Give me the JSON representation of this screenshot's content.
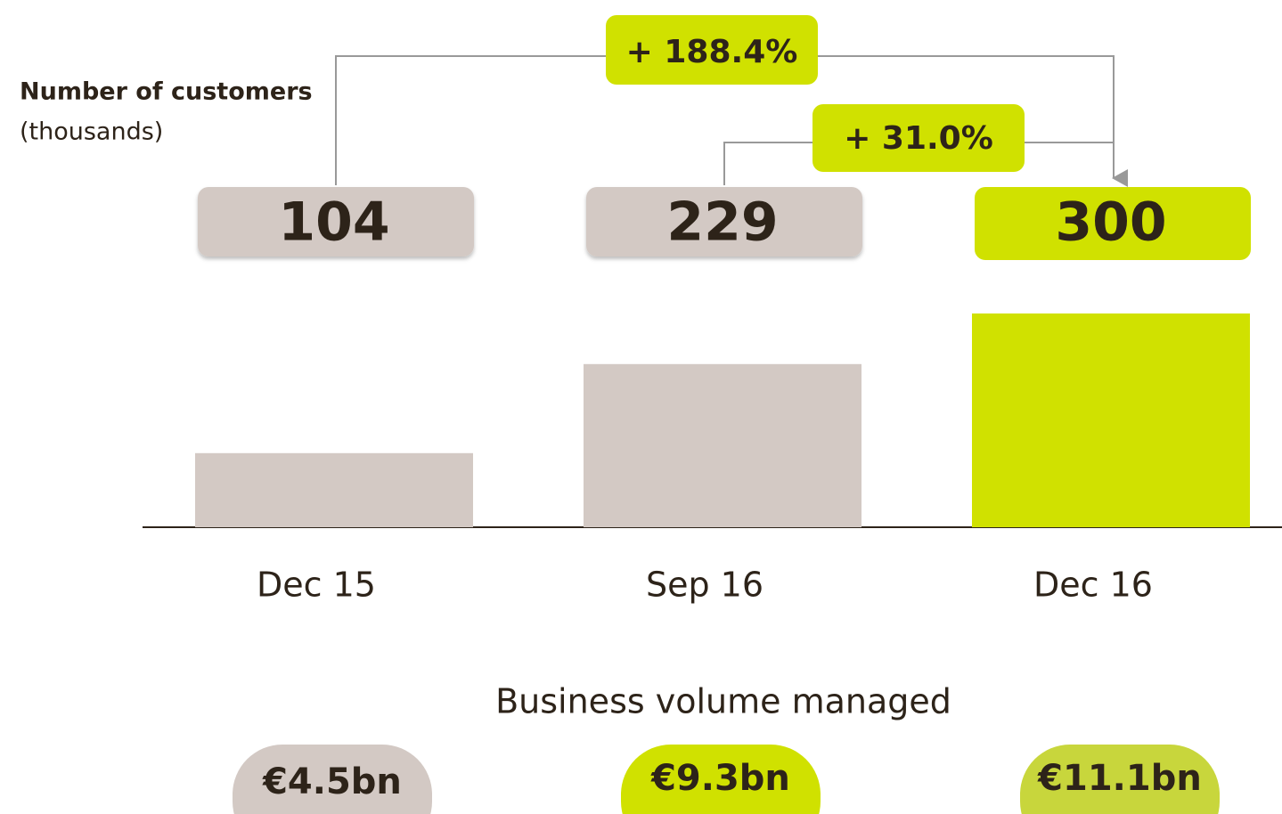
{
  "chart_data": {
    "type": "bar",
    "title": "Number of customers",
    "subtitle": "(thousands)",
    "categories": [
      "Dec 15",
      "Sep 16",
      "Dec 16"
    ],
    "values": [
      104,
      229,
      300
    ],
    "colors": [
      "#d3c9c4",
      "#d3c9c4",
      "#d0e100"
    ],
    "annotations": [
      "+ 188.4%",
      "+ 31.0%"
    ],
    "business_volume": {
      "title": "Business volume managed",
      "items": [
        {
          "label": "€4.5bn",
          "color": "#d3c9c4"
        },
        {
          "label": "€9.3bn",
          "color": "#d0e100"
        },
        {
          "label": "€11.1bn",
          "color": "#c8d63c"
        }
      ]
    }
  }
}
